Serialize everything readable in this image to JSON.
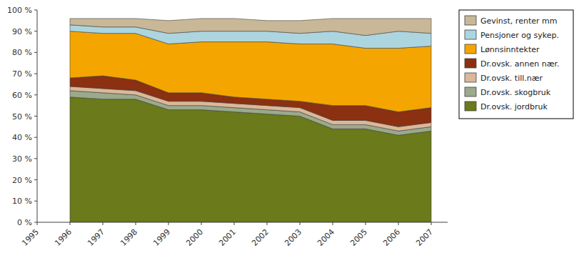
{
  "chart_data": {
    "type": "area",
    "stacked": true,
    "grid": false,
    "legend": "right",
    "x": [
      1996,
      1997,
      1998,
      1999,
      2000,
      2001,
      2002,
      2003,
      2004,
      2005,
      2006,
      2007
    ],
    "series": [
      {
        "name": "Dr.ovsk. jordbruk",
        "color": "#6b7a1a",
        "values": [
          59,
          58,
          58,
          53,
          53,
          52,
          51,
          50,
          44,
          44,
          41,
          43
        ]
      },
      {
        "name": "Dr.ovsk. skogbruk",
        "color": "#9aaa8a",
        "values": [
          3,
          3,
          2,
          2,
          2,
          2,
          2,
          2,
          2,
          2,
          2,
          2
        ]
      },
      {
        "name": "Dr.ovsk. till.nær",
        "color": "#dbb89a",
        "values": [
          2,
          2,
          2,
          2,
          2,
          2,
          2,
          2,
          2,
          2,
          2,
          2
        ]
      },
      {
        "name": "Dr.ovsk. annen nær.",
        "color": "#8b3010",
        "values": [
          4,
          6,
          5,
          4,
          4,
          3,
          3,
          3,
          7,
          7,
          7,
          7
        ]
      },
      {
        "name": "Lønnsinntekter",
        "color": "#f5a500",
        "values": [
          22,
          20,
          22,
          23,
          24,
          26,
          27,
          27,
          29,
          27,
          30,
          29
        ]
      },
      {
        "name": "Pensjoner og sykep.",
        "color": "#acd5e0",
        "values": [
          3,
          3,
          3,
          5,
          5,
          5,
          5,
          5,
          6,
          6,
          8,
          6
        ]
      },
      {
        "name": "Gevinst, renter mm",
        "color": "#c8b898",
        "values": [
          3,
          4,
          4,
          6,
          6,
          6,
          5,
          6,
          6,
          8,
          6,
          7
        ]
      }
    ],
    "xlim": [
      1995,
      2007.5
    ],
    "xticks": [
      1995,
      1996,
      1997,
      1998,
      1999,
      2000,
      2001,
      2002,
      2003,
      2004,
      2005,
      2006,
      2007
    ],
    "ylim": [
      0,
      100
    ],
    "yticks": [
      {
        "value": 0,
        "label": "0 %"
      },
      {
        "value": 10,
        "label": "10 %"
      },
      {
        "value": 20,
        "label": "20 %"
      },
      {
        "value": 30,
        "label": "30 %"
      },
      {
        "value": 40,
        "label": "40 %"
      },
      {
        "value": 50,
        "label": "50 %"
      },
      {
        "value": 60,
        "label": "60 %"
      },
      {
        "value": 70,
        "label": "70 %"
      },
      {
        "value": 80,
        "label": "80 %"
      },
      {
        "value": 90,
        "label": "90 %"
      },
      {
        "value": 100,
        "label": "100 %"
      }
    ]
  }
}
